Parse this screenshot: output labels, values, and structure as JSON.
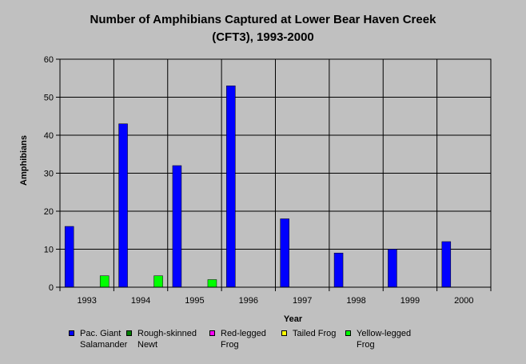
{
  "chart_data": {
    "type": "bar",
    "title_line1": "Number of Amphibians Captured at Lower Bear Haven Creek",
    "title_line2": "(CFT3), 1993-2000",
    "xlabel": "Year",
    "ylabel": "Amphibians",
    "ylim": [
      0,
      60
    ],
    "yticks": [
      "0",
      "10",
      "20",
      "30",
      "40",
      "50",
      "60"
    ],
    "grid": true,
    "legend_position": "bottom",
    "categories": [
      "1993",
      "1994",
      "1995",
      "1996",
      "1997",
      "1998",
      "1999",
      "2000"
    ],
    "series": [
      {
        "name": "Pac. Giant Salamander",
        "name_lines": [
          "Pac. Giant",
          "Salamander"
        ],
        "color": "#0000ff",
        "values": [
          16,
          43,
          32,
          53,
          18,
          9,
          10,
          12
        ]
      },
      {
        "name": "Rough-skinned Newt",
        "name_lines": [
          "Rough-skinned",
          "Newt"
        ],
        "color": "#008000",
        "values": [
          0,
          0,
          0,
          0,
          0,
          0,
          0,
          0
        ]
      },
      {
        "name": "Red-legged Frog",
        "name_lines": [
          "Red-legged",
          "Frog"
        ],
        "color": "#ff00ff",
        "values": [
          0,
          0,
          0,
          0,
          0,
          0,
          0,
          0
        ]
      },
      {
        "name": "Tailed Frog",
        "name_lines": [
          "Tailed Frog"
        ],
        "color": "#ffff00",
        "values": [
          0,
          0,
          0,
          0,
          0,
          0,
          0,
          0
        ]
      },
      {
        "name": "Yellow-legged Frog",
        "name_lines": [
          "Yellow-legged",
          "Frog"
        ],
        "color": "#00ff00",
        "values": [
          3,
          3,
          2,
          0,
          0,
          0,
          0,
          0
        ]
      }
    ]
  }
}
